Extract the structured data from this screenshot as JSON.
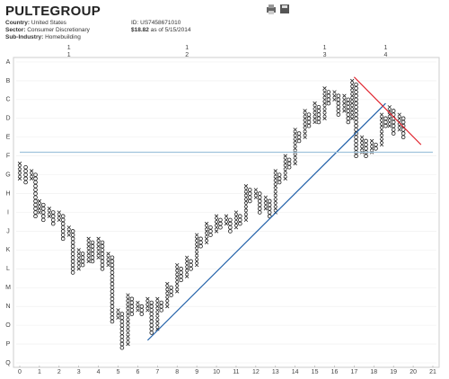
{
  "header": {
    "title": "PULTEGROUP",
    "fields": [
      [
        "Country:",
        "United States"
      ],
      [
        "Sector:",
        "Consumer Discretionary"
      ],
      [
        "Sub-Industry:",
        "Homebuilding"
      ]
    ],
    "id_label": "ID:",
    "id": "US7458671010",
    "price": "$18.82",
    "price_note": "as of 5/15/2014"
  },
  "chart_data": {
    "type": "point-and-figure",
    "box_size": 0.2,
    "xlim": [
      0,
      21
    ],
    "xticks": [
      0,
      1,
      2,
      3,
      4,
      5,
      6,
      7,
      8,
      9,
      10,
      11,
      12,
      13,
      14,
      15,
      16,
      17,
      18,
      19,
      20,
      21
    ],
    "ylim": [
      0,
      16
    ],
    "yticks": [
      {
        "value": 16,
        "label": "A"
      },
      {
        "value": 15,
        "label": "B"
      },
      {
        "value": 14,
        "label": "C"
      },
      {
        "value": 13,
        "label": "D"
      },
      {
        "value": 12,
        "label": "E"
      },
      {
        "value": 11,
        "label": "F"
      },
      {
        "value": 10,
        "label": "G"
      },
      {
        "value": 9,
        "label": "H"
      },
      {
        "value": 8,
        "label": "I"
      },
      {
        "value": 7,
        "label": "J"
      },
      {
        "value": 6,
        "label": "K"
      },
      {
        "value": 5,
        "label": "L"
      },
      {
        "value": 4,
        "label": "M"
      },
      {
        "value": 3,
        "label": "N"
      },
      {
        "value": 2,
        "label": "O"
      },
      {
        "value": 1,
        "label": "P"
      },
      {
        "value": 0,
        "label": "Q"
      }
    ],
    "grid": true,
    "color": "#222222",
    "top_labels": [
      {
        "x": 2.5,
        "line1": "1",
        "line2": "1"
      },
      {
        "x": 8.5,
        "line1": "1",
        "line2": "2"
      },
      {
        "x": 15.5,
        "line1": "1",
        "line2": "3"
      },
      {
        "x": 18.6,
        "line1": "1",
        "line2": "4"
      }
    ],
    "columns": [
      {
        "x": 0.0,
        "kind": "X",
        "low": 9.8,
        "high": 10.6
      },
      {
        "x": 0.3,
        "kind": "O",
        "low": 9.6,
        "high": 10.4
      },
      {
        "x": 0.6,
        "kind": "X",
        "low": 9.8,
        "high": 10.2
      },
      {
        "x": 0.8,
        "kind": "O",
        "low": 7.8,
        "high": 10.0
      },
      {
        "x": 1.0,
        "kind": "X",
        "low": 8.0,
        "high": 8.6
      },
      {
        "x": 1.2,
        "kind": "O",
        "low": 7.6,
        "high": 8.4
      },
      {
        "x": 1.5,
        "kind": "X",
        "low": 7.8,
        "high": 8.2
      },
      {
        "x": 1.7,
        "kind": "O",
        "low": 7.4,
        "high": 8.0
      },
      {
        "x": 2.0,
        "kind": "X",
        "low": 7.6,
        "high": 8.0
      },
      {
        "x": 2.2,
        "kind": "O",
        "low": 6.6,
        "high": 7.8
      },
      {
        "x": 2.5,
        "kind": "X",
        "low": 6.8,
        "high": 7.2
      },
      {
        "x": 2.7,
        "kind": "O",
        "low": 4.8,
        "high": 7.0
      },
      {
        "x": 3.0,
        "kind": "X",
        "low": 5.0,
        "high": 6.0
      },
      {
        "x": 3.2,
        "kind": "O",
        "low": 5.2,
        "high": 5.8
      },
      {
        "x": 3.5,
        "kind": "X",
        "low": 5.4,
        "high": 6.6
      },
      {
        "x": 3.7,
        "kind": "O",
        "low": 5.4,
        "high": 6.4
      },
      {
        "x": 4.0,
        "kind": "X",
        "low": 5.6,
        "high": 6.6
      },
      {
        "x": 4.2,
        "kind": "O",
        "low": 5.0,
        "high": 6.4
      },
      {
        "x": 4.5,
        "kind": "X",
        "low": 5.2,
        "high": 5.8
      },
      {
        "x": 4.7,
        "kind": "O",
        "low": 2.2,
        "high": 5.6
      },
      {
        "x": 5.0,
        "kind": "X",
        "low": 2.4,
        "high": 2.8
      },
      {
        "x": 5.2,
        "kind": "O",
        "low": 0.8,
        "high": 2.6
      },
      {
        "x": 5.5,
        "kind": "X",
        "low": 1.0,
        "high": 3.6
      },
      {
        "x": 5.7,
        "kind": "O",
        "low": 2.6,
        "high": 3.4
      },
      {
        "x": 6.0,
        "kind": "X",
        "low": 2.8,
        "high": 3.2
      },
      {
        "x": 6.2,
        "kind": "O",
        "low": 2.6,
        "high": 3.0
      },
      {
        "x": 6.5,
        "kind": "X",
        "low": 2.8,
        "high": 3.4
      },
      {
        "x": 6.7,
        "kind": "O",
        "low": 1.6,
        "high": 3.2
      },
      {
        "x": 7.0,
        "kind": "X",
        "low": 1.8,
        "high": 3.4
      },
      {
        "x": 7.2,
        "kind": "O",
        "low": 2.8,
        "high": 3.2
      },
      {
        "x": 7.5,
        "kind": "X",
        "low": 3.0,
        "high": 4.2
      },
      {
        "x": 7.7,
        "kind": "O",
        "low": 3.6,
        "high": 4.0
      },
      {
        "x": 8.0,
        "kind": "X",
        "low": 3.8,
        "high": 5.2
      },
      {
        "x": 8.2,
        "kind": "O",
        "low": 4.4,
        "high": 5.0
      },
      {
        "x": 8.5,
        "kind": "X",
        "low": 4.6,
        "high": 5.6
      },
      {
        "x": 8.7,
        "kind": "O",
        "low": 5.0,
        "high": 5.4
      },
      {
        "x": 9.0,
        "kind": "X",
        "low": 5.2,
        "high": 6.8
      },
      {
        "x": 9.2,
        "kind": "O",
        "low": 6.2,
        "high": 6.6
      },
      {
        "x": 9.5,
        "kind": "X",
        "low": 6.4,
        "high": 7.4
      },
      {
        "x": 9.7,
        "kind": "O",
        "low": 6.8,
        "high": 7.2
      },
      {
        "x": 10.0,
        "kind": "X",
        "low": 7.0,
        "high": 7.8
      },
      {
        "x": 10.2,
        "kind": "O",
        "low": 7.2,
        "high": 7.6
      },
      {
        "x": 10.5,
        "kind": "X",
        "low": 7.4,
        "high": 7.8
      },
      {
        "x": 10.7,
        "kind": "O",
        "low": 7.0,
        "high": 7.6
      },
      {
        "x": 11.0,
        "kind": "X",
        "low": 7.2,
        "high": 8.0
      },
      {
        "x": 11.2,
        "kind": "O",
        "low": 7.4,
        "high": 7.8
      },
      {
        "x": 11.5,
        "kind": "X",
        "low": 7.6,
        "high": 9.4
      },
      {
        "x": 11.7,
        "kind": "O",
        "low": 8.6,
        "high": 9.2
      },
      {
        "x": 12.0,
        "kind": "X",
        "low": 8.8,
        "high": 9.2
      },
      {
        "x": 12.2,
        "kind": "O",
        "low": 8.0,
        "high": 9.0
      },
      {
        "x": 12.5,
        "kind": "X",
        "low": 8.2,
        "high": 8.8
      },
      {
        "x": 12.7,
        "kind": "O",
        "low": 7.8,
        "high": 8.6
      },
      {
        "x": 13.0,
        "kind": "X",
        "low": 8.0,
        "high": 10.2
      },
      {
        "x": 13.2,
        "kind": "O",
        "low": 9.6,
        "high": 10.0
      },
      {
        "x": 13.5,
        "kind": "X",
        "low": 9.8,
        "high": 11.0
      },
      {
        "x": 13.7,
        "kind": "O",
        "low": 10.4,
        "high": 10.8
      },
      {
        "x": 14.0,
        "kind": "X",
        "low": 10.6,
        "high": 12.4
      },
      {
        "x": 14.2,
        "kind": "O",
        "low": 11.8,
        "high": 12.2
      },
      {
        "x": 14.5,
        "kind": "X",
        "low": 12.0,
        "high": 13.4
      },
      {
        "x": 14.7,
        "kind": "O",
        "low": 12.6,
        "high": 13.2
      },
      {
        "x": 15.0,
        "kind": "X",
        "low": 12.8,
        "high": 13.8
      },
      {
        "x": 15.2,
        "kind": "O",
        "low": 12.8,
        "high": 13.6
      },
      {
        "x": 15.5,
        "kind": "X",
        "low": 13.0,
        "high": 14.6
      },
      {
        "x": 15.7,
        "kind": "O",
        "low": 13.8,
        "high": 14.4
      },
      {
        "x": 16.0,
        "kind": "X",
        "low": 14.0,
        "high": 14.4
      },
      {
        "x": 16.2,
        "kind": "O",
        "low": 13.2,
        "high": 14.2
      },
      {
        "x": 16.5,
        "kind": "X",
        "low": 13.4,
        "high": 14.2
      },
      {
        "x": 16.7,
        "kind": "O",
        "low": 12.8,
        "high": 14.0
      },
      {
        "x": 16.9,
        "kind": "X",
        "low": 13.0,
        "high": 15.0
      },
      {
        "x": 17.1,
        "kind": "O",
        "low": 11.0,
        "high": 14.8
      },
      {
        "x": 17.4,
        "kind": "X",
        "low": 11.2,
        "high": 12.0
      },
      {
        "x": 17.6,
        "kind": "O",
        "low": 11.0,
        "high": 11.8
      },
      {
        "x": 17.9,
        "kind": "X",
        "low": 11.2,
        "high": 11.8
      },
      {
        "x": 18.1,
        "kind": "O",
        "low": 11.4,
        "high": 11.6
      },
      {
        "x": 18.4,
        "kind": "X",
        "low": 11.6,
        "high": 13.2
      },
      {
        "x": 18.6,
        "kind": "O",
        "low": 12.6,
        "high": 13.0
      },
      {
        "x": 18.8,
        "kind": "X",
        "low": 12.6,
        "high": 13.6
      },
      {
        "x": 19.0,
        "kind": "O",
        "low": 12.2,
        "high": 13.4
      },
      {
        "x": 19.3,
        "kind": "X",
        "low": 12.4,
        "high": 13.2
      },
      {
        "x": 19.5,
        "kind": "O",
        "low": 12.0,
        "high": 13.0
      }
    ],
    "lines": [
      {
        "color": "#1f5fa8",
        "x": [
          6.5,
          18.6
        ],
        "y": [
          1.2,
          13.8
        ]
      },
      {
        "color": "#e0202a",
        "x": [
          17.0,
          20.4
        ],
        "y": [
          15.2,
          11.6
        ]
      },
      {
        "color": "#9fc3dc",
        "x": [
          0,
          21
        ],
        "y": [
          11.2,
          11.2
        ]
      }
    ]
  }
}
